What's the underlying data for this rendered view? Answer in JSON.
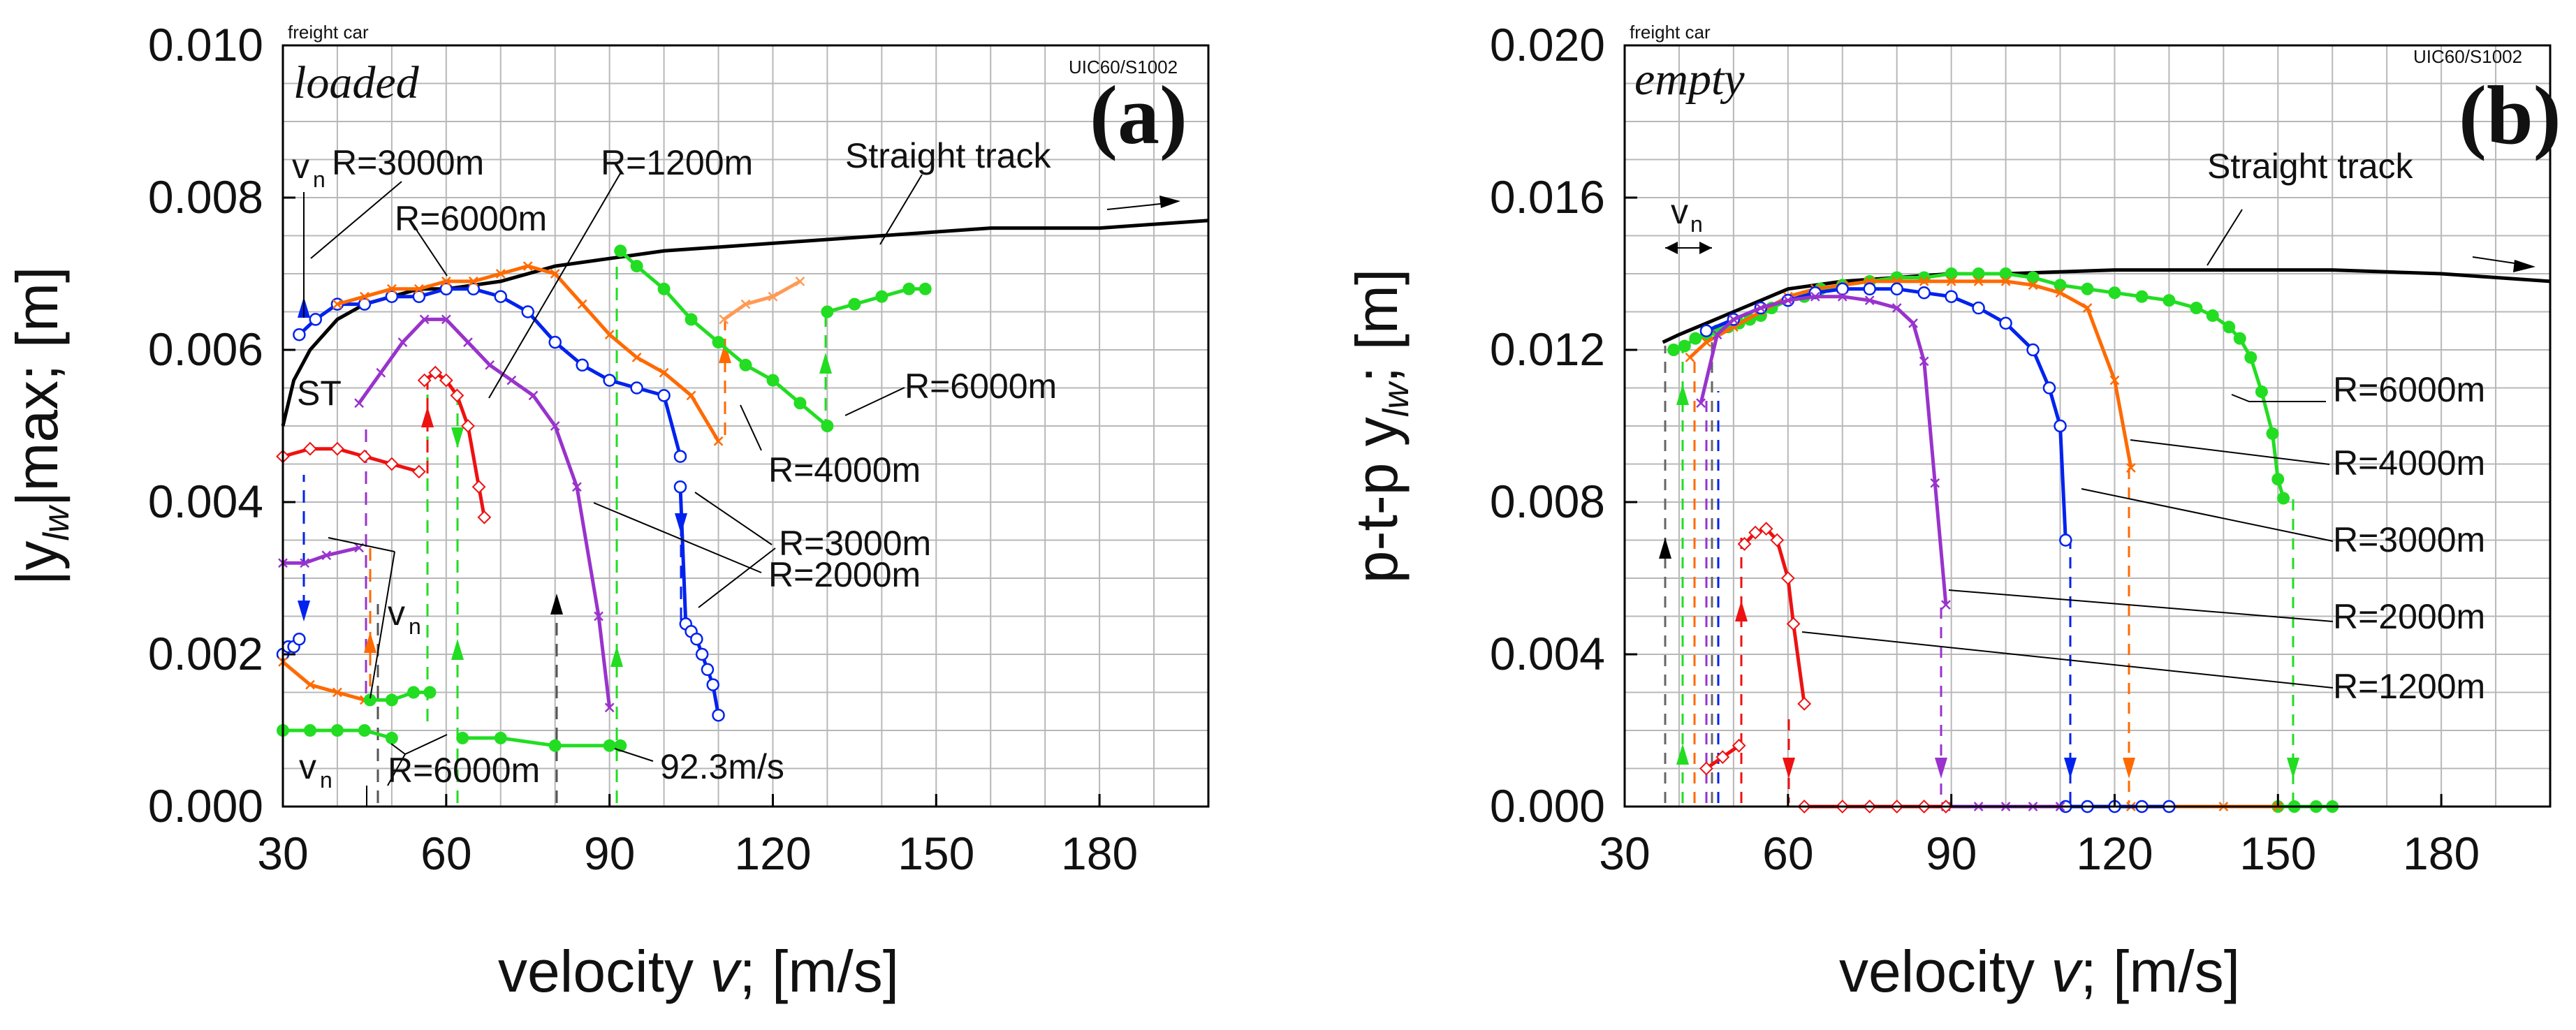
{
  "figure": {
    "panels": [
      {
        "id": "a",
        "panel_label": "(a)",
        "condition": "loaded",
        "vehicle": "freight car",
        "profile": "UIC60/S1002",
        "ylabel_main": "|y",
        "ylabel_sub": "lw",
        "ylabel_tail": "|max; [m]",
        "xlabel_main": "velocity ",
        "xlabel_var": "v",
        "xlabel_tail": "; [m/s]",
        "annotations": [
          "R=3000m",
          "R=1200m",
          "Straight track",
          "R=6000m",
          "R=6000m",
          "R=4000m",
          "R=3000m",
          "R=2000m",
          "R=6000m",
          "ST",
          "v",
          "v",
          "v",
          "92.3m/s"
        ]
      },
      {
        "id": "b",
        "panel_label": "(b)",
        "condition": "empty",
        "vehicle": "freight car",
        "profile": "UIC60/S1002",
        "ylabel_main": "p-t-p y",
        "ylabel_sub": "lw",
        "ylabel_tail": "; [m]",
        "xlabel_main": "velocity ",
        "xlabel_var": "v",
        "xlabel_tail": "; [m/s]",
        "annotations": [
          "Straight track",
          "R=6000m",
          "R=4000m",
          "R=3000m",
          "R=2000m",
          "R=1200m",
          "v"
        ]
      }
    ]
  },
  "chart_data": [
    {
      "type": "line",
      "panel": "a",
      "title": "",
      "xlabel": "velocity v; [m/s]",
      "ylabel": "|ylw|max; [m]",
      "xlim": [
        30,
        200
      ],
      "ylim": [
        0,
        0.01
      ],
      "xticks": [
        "30",
        "60",
        "90",
        "120",
        "150",
        "180"
      ],
      "yticks": [
        "0.000",
        "0.002",
        "0.004",
        "0.006",
        "0.008",
        "0.010"
      ],
      "grid": true,
      "series": [
        {
          "name": "Straight track",
          "color": "#000000",
          "x": [
            30,
            32,
            35,
            40,
            45,
            50,
            55,
            60,
            70,
            80,
            100,
            120,
            140,
            160,
            180,
            200
          ],
          "y": [
            0.005,
            0.0056,
            0.006,
            0.0064,
            0.0066,
            0.0067,
            0.0068,
            0.0068,
            0.0069,
            0.0071,
            0.0073,
            0.0074,
            0.0075,
            0.0076,
            0.0076,
            0.0077
          ]
        },
        {
          "name": "R=3000m",
          "color": "#0022ee",
          "x": [
            33,
            36,
            40,
            45,
            50,
            55,
            60,
            65,
            70,
            75,
            80,
            85,
            90,
            95,
            100,
            103
          ],
          "y": [
            0.0062,
            0.0064,
            0.0066,
            0.0066,
            0.0067,
            0.0067,
            0.0068,
            0.0068,
            0.0067,
            0.0065,
            0.0061,
            0.0058,
            0.0056,
            0.0055,
            0.0054,
            0.0046
          ]
        },
        {
          "name": "R=3000m",
          "color": "#0022ee",
          "x": [
            103,
            104,
            105,
            106,
            107,
            108,
            109,
            110
          ],
          "y": [
            0.0042,
            0.0024,
            0.0023,
            0.0022,
            0.002,
            0.0018,
            0.0016,
            0.0012
          ]
        },
        {
          "name": "R=3000m",
          "color": "#0022ee",
          "x": [
            30,
            31,
            32,
            33
          ],
          "y": [
            0.002,
            0.0021,
            0.0021,
            0.0022
          ]
        },
        {
          "name": "R=4000m",
          "color": "#ff6a00",
          "x": [
            40,
            45,
            50,
            55,
            60,
            65,
            70,
            75,
            80,
            85,
            90,
            95,
            100,
            105,
            110
          ],
          "y": [
            0.0066,
            0.0067,
            0.0068,
            0.0068,
            0.0069,
            0.0069,
            0.007,
            0.0071,
            0.007,
            0.0066,
            0.0062,
            0.0059,
            0.0057,
            0.0054,
            0.0048
          ]
        },
        {
          "name": "R=4000m",
          "color": "#ff6a00",
          "x": [
            30,
            35,
            40,
            45
          ],
          "y": [
            0.0019,
            0.0016,
            0.0015,
            0.0014
          ]
        },
        {
          "name": "R=4000m",
          "color": "#ff9a55",
          "x": [
            111,
            115,
            120,
            125
          ],
          "y": [
            0.0064,
            0.0066,
            0.0067,
            0.0069
          ]
        },
        {
          "name": "R=2000m",
          "color": "#9933cc",
          "x": [
            44,
            48,
            52,
            56,
            60,
            64,
            68,
            72,
            76,
            80,
            84,
            88,
            90
          ],
          "y": [
            0.0053,
            0.0057,
            0.0061,
            0.0064,
            0.0064,
            0.0061,
            0.0058,
            0.0056,
            0.0054,
            0.005,
            0.0042,
            0.0025,
            0.0013
          ]
        },
        {
          "name": "R=2000m",
          "color": "#9933cc",
          "x": [
            30,
            34,
            38,
            44
          ],
          "y": [
            0.0032,
            0.0032,
            0.0033,
            0.0034
          ]
        },
        {
          "name": "R=1200m",
          "color": "#ee1111",
          "x": [
            30,
            35,
            40,
            45,
            50,
            55
          ],
          "y": [
            0.0046,
            0.0047,
            0.0047,
            0.0046,
            0.0045,
            0.0044
          ]
        },
        {
          "name": "R=1200m",
          "color": "#ee1111",
          "x": [
            56,
            58,
            60,
            62,
            64,
            66,
            67
          ],
          "y": [
            0.0056,
            0.0057,
            0.0056,
            0.0054,
            0.005,
            0.0042,
            0.0038
          ]
        },
        {
          "name": "R=6000m",
          "color": "#22dd22",
          "x": [
            92,
            95,
            100,
            105,
            110,
            115,
            120,
            125,
            130
          ],
          "y": [
            0.0073,
            0.0071,
            0.0068,
            0.0064,
            0.0061,
            0.0058,
            0.0056,
            0.0053,
            0.005
          ]
        },
        {
          "name": "R=6000m",
          "color": "#22dd22",
          "x": [
            130,
            135,
            140,
            145,
            148
          ],
          "y": [
            0.0065,
            0.0066,
            0.0067,
            0.0068,
            0.0068
          ]
        },
        {
          "name": "R=6000m",
          "color": "#22dd22",
          "x": [
            30,
            35,
            40,
            45,
            50
          ],
          "y": [
            0.001,
            0.001,
            0.001,
            0.001,
            0.0009
          ]
        },
        {
          "name": "R=6000m",
          "color": "#22dd22",
          "x": [
            46,
            50,
            54,
            57
          ],
          "y": [
            0.0014,
            0.0014,
            0.0015,
            0.0015
          ]
        },
        {
          "name": "R=6000m",
          "color": "#22dd22",
          "x": [
            63,
            70,
            80,
            90,
            92
          ],
          "y": [
            0.0009,
            0.0009,
            0.0008,
            0.0008,
            0.0008
          ]
        }
      ]
    },
    {
      "type": "line",
      "panel": "b",
      "title": "",
      "xlabel": "velocity v; [m/s]",
      "ylabel": "p-t-p ylw; [m]",
      "xlim": [
        30,
        200
      ],
      "ylim": [
        0,
        0.02
      ],
      "xticks": [
        "30",
        "60",
        "90",
        "120",
        "150",
        "180"
      ],
      "yticks": [
        "0.000",
        "0.004",
        "0.008",
        "0.012",
        "0.016",
        "0.020"
      ],
      "grid": true,
      "series": [
        {
          "name": "Straight track",
          "color": "#000000",
          "x": [
            37,
            40,
            45,
            50,
            55,
            60,
            70,
            80,
            90,
            100,
            120,
            140,
            160,
            180,
            200
          ],
          "y": [
            0.0122,
            0.0124,
            0.0127,
            0.013,
            0.0133,
            0.0136,
            0.0138,
            0.0139,
            0.014,
            0.014,
            0.0141,
            0.0141,
            0.0141,
            0.014,
            0.0138
          ]
        },
        {
          "name": "R=6000m",
          "color": "#22dd22",
          "x": [
            39,
            41,
            43,
            45,
            47,
            49,
            51,
            53,
            55,
            57,
            60,
            63,
            66,
            70,
            75,
            80,
            85,
            90,
            95,
            100,
            105,
            110,
            115,
            120,
            125,
            130,
            135,
            138,
            141,
            143,
            145,
            147,
            149,
            150,
            151
          ],
          "y": [
            0.012,
            0.0121,
            0.0123,
            0.0124,
            0.0125,
            0.0126,
            0.0127,
            0.0128,
            0.0129,
            0.0131,
            0.0133,
            0.0134,
            0.0136,
            0.0137,
            0.0138,
            0.0139,
            0.0139,
            0.014,
            0.014,
            0.014,
            0.0139,
            0.0137,
            0.0136,
            0.0135,
            0.0134,
            0.0133,
            0.0131,
            0.0129,
            0.0126,
            0.0123,
            0.0118,
            0.0109,
            0.0098,
            0.0086,
            0.0081
          ]
        },
        {
          "name": "R=6000m",
          "color": "#22dd22",
          "x": [
            150,
            153,
            157,
            160
          ],
          "y": [
            0.0,
            0.0,
            0.0,
            0.0
          ]
        },
        {
          "name": "R=4000m",
          "color": "#ff6a00",
          "x": [
            42,
            45,
            50,
            55,
            60,
            65,
            70,
            75,
            80,
            85,
            90,
            95,
            100,
            105,
            110,
            115,
            120,
            123
          ],
          "y": [
            0.0118,
            0.0122,
            0.0126,
            0.013,
            0.0134,
            0.0136,
            0.0137,
            0.0138,
            0.0138,
            0.0138,
            0.0138,
            0.0138,
            0.0138,
            0.0137,
            0.0135,
            0.0131,
            0.0112,
            0.0089
          ]
        },
        {
          "name": "R=4000m",
          "color": "#ff6a00",
          "x": [
            123,
            130,
            140,
            150
          ],
          "y": [
            0.0,
            0.0,
            0.0,
            0.0
          ]
        },
        {
          "name": "R=3000m",
          "color": "#0022ee",
          "x": [
            45,
            50,
            55,
            60,
            65,
            70,
            75,
            80,
            85,
            90,
            95,
            100,
            105,
            108,
            110,
            111
          ],
          "y": [
            0.0125,
            0.0128,
            0.0131,
            0.0133,
            0.0135,
            0.0136,
            0.0136,
            0.0136,
            0.0135,
            0.0134,
            0.0131,
            0.0127,
            0.012,
            0.011,
            0.01,
            0.007
          ]
        },
        {
          "name": "R=3000m",
          "color": "#0022ee",
          "x": [
            111,
            115,
            120,
            125,
            130
          ],
          "y": [
            0.0,
            0.0,
            0.0,
            0.0,
            0.0
          ]
        },
        {
          "name": "R=2000m",
          "color": "#9933cc",
          "x": [
            44,
            47,
            50,
            55,
            60,
            65,
            70,
            75,
            80,
            83,
            85,
            87,
            89
          ],
          "y": [
            0.0106,
            0.0124,
            0.0128,
            0.0131,
            0.0133,
            0.0134,
            0.0134,
            0.0133,
            0.0131,
            0.0127,
            0.0117,
            0.0085,
            0.0053
          ]
        },
        {
          "name": "R=2000m",
          "color": "#9933cc",
          "x": [
            89,
            95,
            100,
            105,
            110
          ],
          "y": [
            0.0,
            0.0,
            0.0,
            0.0,
            0.0
          ]
        },
        {
          "name": "R=1200m",
          "color": "#ee1111",
          "x": [
            45,
            48,
            51
          ],
          "y": [
            0.001,
            0.0013,
            0.0016
          ]
        },
        {
          "name": "R=1200m",
          "color": "#ee1111",
          "x": [
            52,
            54,
            56,
            58,
            60,
            61,
            63
          ],
          "y": [
            0.0069,
            0.0072,
            0.0073,
            0.007,
            0.006,
            0.0048,
            0.0027
          ]
        },
        {
          "name": "R=1200m",
          "color": "#ee1111",
          "x": [
            63,
            70,
            75,
            80,
            85,
            89
          ],
          "y": [
            0.0,
            0.0,
            0.0,
            0.0,
            0.0,
            0.0
          ]
        }
      ]
    }
  ]
}
